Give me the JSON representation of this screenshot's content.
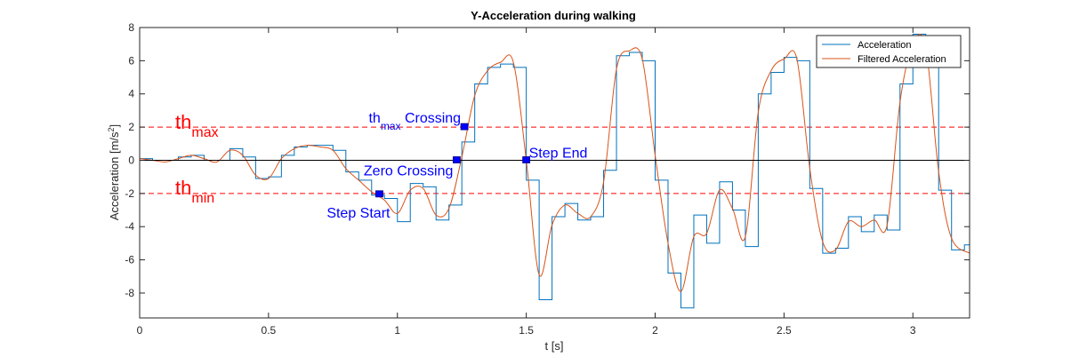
{
  "chart_data": {
    "type": "line",
    "title": "Y-Acceleration during walking",
    "xlabel": "t [s]",
    "ylabel": "Acceleration [m/s",
    "ylabel_sup": "2",
    "ylabel_end": "]",
    "xlim": [
      0,
      3.22
    ],
    "ylim": [
      -9.5,
      8
    ],
    "xticks": [
      0,
      0.5,
      1,
      1.5,
      2,
      2.5,
      3
    ],
    "xtick_labels": [
      "0",
      "0.5",
      "1",
      "1.5",
      "2",
      "2.5",
      "3"
    ],
    "yticks": [
      -8,
      -6,
      -4,
      -2,
      0,
      2,
      4,
      6,
      8
    ],
    "ytick_labels": [
      "-8",
      "-6",
      "-4",
      "-2",
      "0",
      "2",
      "4",
      "6",
      "8"
    ],
    "grid": false,
    "legend_position": "top-right",
    "thresholds": {
      "max": 2,
      "min": -2
    },
    "series": [
      {
        "name": "Acceleration",
        "color": "#0072bd",
        "style": "step",
        "x": [
          0,
          0.05,
          0.1,
          0.15,
          0.2,
          0.25,
          0.3,
          0.35,
          0.4,
          0.45,
          0.5,
          0.55,
          0.6,
          0.65,
          0.7,
          0.75,
          0.8,
          0.85,
          0.9,
          0.95,
          1.0,
          1.05,
          1.1,
          1.15,
          1.2,
          1.25,
          1.3,
          1.35,
          1.4,
          1.45,
          1.5,
          1.55,
          1.6,
          1.65,
          1.7,
          1.75,
          1.8,
          1.85,
          1.9,
          1.95,
          2.0,
          2.05,
          2.1,
          2.15,
          2.2,
          2.25,
          2.3,
          2.35,
          2.4,
          2.45,
          2.5,
          2.55,
          2.6,
          2.65,
          2.7,
          2.75,
          2.8,
          2.85,
          2.9,
          2.95,
          3.0,
          3.05,
          3.1,
          3.15,
          3.2
        ],
        "y": [
          0.1,
          0.0,
          0.0,
          0.2,
          0.3,
          0.0,
          0.0,
          0.7,
          0.2,
          -1.1,
          -1.0,
          0.3,
          0.8,
          0.9,
          0.9,
          0.6,
          -0.7,
          -1.2,
          -2.1,
          -2.3,
          -3.7,
          -1.4,
          -1.6,
          -3.6,
          -2.7,
          1.1,
          4.6,
          5.6,
          5.8,
          5.6,
          -1.2,
          -8.4,
          -3.4,
          -2.6,
          -3.6,
          -3.4,
          -0.6,
          6.3,
          6.5,
          6.0,
          -1.2,
          -6.8,
          -8.9,
          -3.3,
          -5.0,
          -1.3,
          -3.0,
          -5.2,
          4.0,
          5.3,
          6.2,
          6.0,
          -1.7,
          -5.6,
          -5.3,
          -3.4,
          -4.3,
          -3.3,
          -4.2,
          4.6,
          7.6,
          6.6,
          -1.8,
          -5.4,
          -5.1
        ]
      },
      {
        "name": "Filtered Acceleration",
        "color": "#d95319",
        "style": "line",
        "x": [
          0,
          0.05,
          0.1,
          0.15,
          0.2,
          0.25,
          0.3,
          0.35,
          0.4,
          0.45,
          0.5,
          0.55,
          0.6,
          0.65,
          0.7,
          0.75,
          0.8,
          0.85,
          0.9,
          0.95,
          1.0,
          1.05,
          1.1,
          1.15,
          1.2,
          1.25,
          1.3,
          1.35,
          1.4,
          1.45,
          1.5,
          1.55,
          1.6,
          1.65,
          1.7,
          1.75,
          1.8,
          1.85,
          1.9,
          1.95,
          2.0,
          2.05,
          2.1,
          2.15,
          2.2,
          2.25,
          2.3,
          2.35,
          2.4,
          2.45,
          2.5,
          2.55,
          2.6,
          2.65,
          2.7,
          2.75,
          2.8,
          2.85,
          2.9,
          2.95,
          3.0,
          3.05,
          3.1,
          3.15,
          3.22
        ],
        "y": [
          0.1,
          0.0,
          -0.1,
          0.1,
          0.3,
          0.1,
          -0.1,
          0.6,
          0.3,
          -0.9,
          -1.1,
          0.1,
          0.7,
          0.9,
          0.8,
          0.6,
          -0.5,
          -1.2,
          -1.9,
          -2.4,
          -3.2,
          -1.8,
          -1.7,
          -3.3,
          -2.9,
          0.2,
          3.9,
          5.4,
          5.9,
          5.9,
          0.0,
          -6.9,
          -3.9,
          -2.7,
          -3.2,
          -3.4,
          -1.3,
          5.5,
          6.6,
          6.1,
          0.3,
          -5.0,
          -7.9,
          -4.6,
          -4.4,
          -1.8,
          -2.9,
          -4.6,
          2.9,
          5.4,
          6.1,
          6.1,
          -0.5,
          -4.9,
          -5.4,
          -3.7,
          -4.0,
          -3.6,
          -3.9,
          3.5,
          7.0,
          6.8,
          -0.7,
          -4.7,
          -5.6
        ]
      },
      {
        "name": "Zero",
        "color": "#000000",
        "style": "line",
        "x": [
          0,
          3.22
        ],
        "y": [
          0,
          0
        ]
      }
    ],
    "markers": [
      {
        "label": "Step Start",
        "x": 0.93,
        "y": -2.05
      },
      {
        "label": "Zero Crossing",
        "x": 1.23,
        "y": 0.0
      },
      {
        "label_main": "th",
        "label_sub": "max",
        "label_rest": " Crossing",
        "x": 1.26,
        "y": 2.0
      },
      {
        "label": "Step End",
        "x": 1.5,
        "y": 0.0
      }
    ],
    "threshold_labels": [
      {
        "main": "th",
        "sub": "max",
        "y": 2
      },
      {
        "main": "th",
        "sub": "min",
        "y": -2
      }
    ]
  }
}
